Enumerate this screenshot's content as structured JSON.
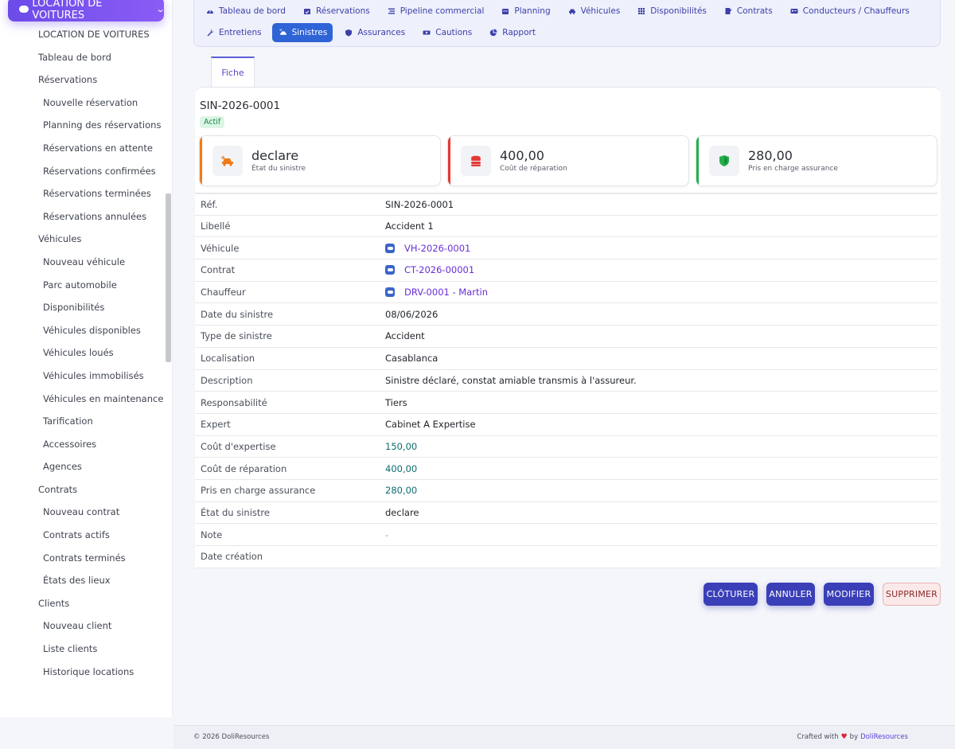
{
  "app": {
    "module_title": "LOCATION DE VOITURES",
    "accent": "#6c4be8"
  },
  "sidebar": {
    "items": [
      {
        "label": "LOCATION DE VOITURES",
        "level": 0
      },
      {
        "label": "Tableau de bord",
        "level": 0
      },
      {
        "label": "Réservations",
        "level": 0
      },
      {
        "label": "Nouvelle réservation",
        "level": 1
      },
      {
        "label": "Planning des réservations",
        "level": 1
      },
      {
        "label": "Réservations en attente",
        "level": 1
      },
      {
        "label": "Réservations confirmées",
        "level": 1
      },
      {
        "label": "Réservations terminées",
        "level": 1
      },
      {
        "label": "Réservations annulées",
        "level": 1
      },
      {
        "label": "Véhicules",
        "level": 0
      },
      {
        "label": "Nouveau véhicule",
        "level": 1
      },
      {
        "label": "Parc automobile",
        "level": 1
      },
      {
        "label": "Disponibilités",
        "level": 1
      },
      {
        "label": "Véhicules disponibles",
        "level": 1
      },
      {
        "label": "Véhicules loués",
        "level": 1
      },
      {
        "label": "Véhicules immobilisés",
        "level": 1
      },
      {
        "label": "Véhicules en maintenance",
        "level": 1
      },
      {
        "label": "Tarification",
        "level": 1
      },
      {
        "label": "Accessoires",
        "level": 1
      },
      {
        "label": "Agences",
        "level": 1
      },
      {
        "label": "Contrats",
        "level": 0
      },
      {
        "label": "Nouveau contrat",
        "level": 1
      },
      {
        "label": "Contrats actifs",
        "level": 1
      },
      {
        "label": "Contrats terminés",
        "level": 1
      },
      {
        "label": "États des lieux",
        "level": 1
      },
      {
        "label": "Clients",
        "level": 0
      },
      {
        "label": "Nouveau client",
        "level": 1
      },
      {
        "label": "Liste clients",
        "level": 1
      },
      {
        "label": "Historique locations",
        "level": 1
      }
    ]
  },
  "topnav": {
    "row1": [
      {
        "label": "Tableau de bord",
        "icon": "dashboard-icon"
      },
      {
        "label": "Réservations",
        "icon": "calendar-check-icon"
      },
      {
        "label": "Pipeline commercial",
        "icon": "pipeline-icon"
      },
      {
        "label": "Planning",
        "icon": "calendar-icon"
      },
      {
        "label": "Véhicules",
        "icon": "car-icon"
      },
      {
        "label": "Disponibilités",
        "icon": "grid-icon"
      },
      {
        "label": "Contrats",
        "icon": "contract-icon"
      },
      {
        "label": "Conducteurs / Chauffeurs",
        "icon": "id-card-icon"
      }
    ],
    "row2": [
      {
        "label": "Entretiens",
        "icon": "wrench-icon"
      },
      {
        "label": "Sinistres",
        "icon": "car-crash-icon",
        "active": true
      },
      {
        "label": "Assurances",
        "icon": "shield-icon"
      },
      {
        "label": "Cautions",
        "icon": "money-icon"
      },
      {
        "label": "Rapport",
        "icon": "pie-chart-icon"
      }
    ]
  },
  "tabs": {
    "fiche": "Fiche"
  },
  "record": {
    "ref": "SIN-2026-0001",
    "status_badge": "Actif"
  },
  "kpis": [
    {
      "value": "declare",
      "label": "État du sinistre",
      "color": "#f07a1a",
      "icon": "car-crash-icon"
    },
    {
      "value": "400,00",
      "label": "Coût de réparation",
      "color": "#e53935",
      "icon": "coins-icon"
    },
    {
      "value": "280,00",
      "label": "Pris en charge assurance",
      "color": "#22b04b",
      "icon": "shield-check-icon"
    }
  ],
  "fields": [
    {
      "label": "Réf.",
      "value": "SIN-2026-0001",
      "type": "text"
    },
    {
      "label": "Libellé",
      "value": "Accident 1",
      "type": "text"
    },
    {
      "label": "Véhicule",
      "value": "VH-2026-0001",
      "type": "link"
    },
    {
      "label": "Contrat",
      "value": "CT-2026-00001",
      "type": "link"
    },
    {
      "label": "Chauffeur",
      "value": "DRV-0001 - Martin",
      "type": "link"
    },
    {
      "label": "Date du sinistre",
      "value": "08/06/2026",
      "type": "text"
    },
    {
      "label": "Type de sinistre",
      "value": "Accident",
      "type": "text"
    },
    {
      "label": "Localisation",
      "value": "Casablanca",
      "type": "text"
    },
    {
      "label": "Description",
      "value": "Sinistre déclaré, constat amiable transmis à l'assureur.",
      "type": "text"
    },
    {
      "label": "Responsabilité",
      "value": "Tiers",
      "type": "text"
    },
    {
      "label": "Expert",
      "value": "Cabinet A Expertise",
      "type": "text"
    },
    {
      "label": "Coût d'expertise",
      "value": "150,00",
      "type": "num"
    },
    {
      "label": "Coût de réparation",
      "value": "400,00",
      "type": "num"
    },
    {
      "label": "Pris en charge assurance",
      "value": "280,00",
      "type": "num"
    },
    {
      "label": "État du sinistre",
      "value": "declare",
      "type": "text"
    },
    {
      "label": "Note",
      "value": "-",
      "type": "muted"
    },
    {
      "label": "Date création",
      "value": "",
      "type": "text"
    }
  ],
  "actions": {
    "close": "CLÔTURER",
    "cancel": "ANNULER",
    "edit": "MODIFIER",
    "delete": "SUPPRIMER"
  },
  "footer": {
    "copyright": "© 2026 DoliResources",
    "crafted": "Crafted with",
    "by": "by",
    "brand": "DoliResources"
  }
}
